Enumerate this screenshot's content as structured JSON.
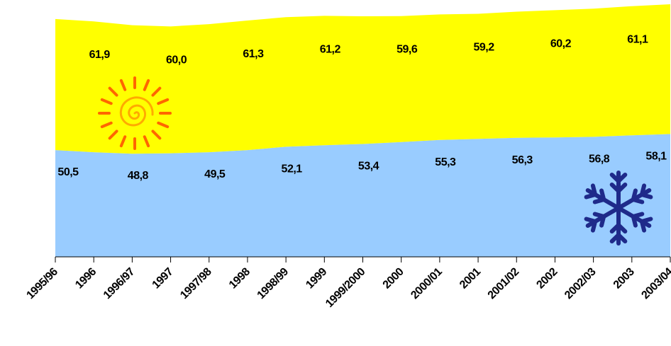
{
  "chart_data": {
    "type": "stacked_area",
    "categories": [
      "1995/96",
      "1996",
      "1996/97",
      "1997",
      "1997/98",
      "1998",
      "1998/99",
      "1999",
      "1999/2000",
      "2000",
      "2000/01",
      "2001",
      "2001/02",
      "2002",
      "2002/03",
      "2003",
      "2003/04"
    ],
    "series": [
      {
        "color": "#99ccff",
        "values": [
          50.5,
          49.5,
          48.8,
          49.0,
          49.5,
          50.5,
          52.1,
          52.8,
          53.4,
          54.3,
          55.3,
          55.8,
          56.3,
          56.5,
          56.8,
          57.5,
          58.1
        ],
        "value_labels": [
          "50,5",
          null,
          "48,8",
          null,
          "49,5",
          null,
          "52,1",
          null,
          "53,4",
          null,
          "55,3",
          null,
          "56,3",
          null,
          "56,8",
          null,
          "58,1"
        ]
      },
      {
        "color": "#ffff00",
        "values": [
          62.0,
          61.9,
          60.8,
          60.0,
          60.6,
          61.3,
          61.3,
          61.2,
          60.4,
          59.6,
          59.4,
          59.2,
          59.7,
          60.2,
          60.6,
          61.1,
          61.4
        ],
        "value_labels": [
          null,
          "61,9",
          null,
          "60,0",
          null,
          "61,3",
          null,
          "61,2",
          null,
          "59,6",
          null,
          "59,2",
          null,
          "60,2",
          null,
          "61,1",
          null
        ]
      }
    ]
  }
}
